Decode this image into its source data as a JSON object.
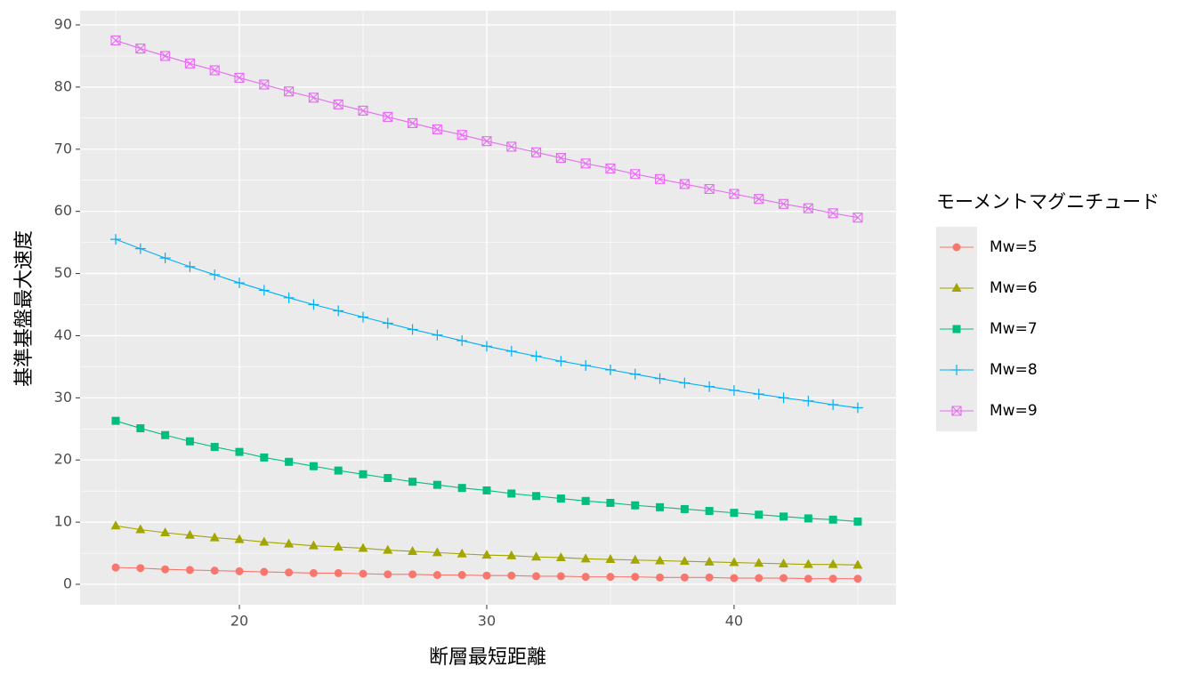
{
  "chart_data": {
    "type": "line",
    "x_label": "断層最短距離",
    "y_label": "基準基盤最大速度",
    "legend_title": "モーメントマグニチュード",
    "legend_position": "right",
    "grid": true,
    "x": [
      15,
      16,
      17,
      18,
      19,
      20,
      21,
      22,
      23,
      24,
      25,
      26,
      27,
      28,
      29,
      30,
      31,
      32,
      33,
      34,
      35,
      36,
      37,
      38,
      39,
      40,
      41,
      42,
      43,
      44,
      45
    ],
    "xlim": [
      13.56,
      46.55
    ],
    "xticks": [
      20,
      30,
      40
    ],
    "ylim": [
      -3.29,
      92.29
    ],
    "yticks": [
      0,
      10,
      20,
      30,
      40,
      50,
      60,
      70,
      80,
      90
    ],
    "series": [
      {
        "name": "Mw=5",
        "color": "#F8766D",
        "shape": "circle",
        "values": [
          2.7,
          2.6,
          2.4,
          2.3,
          2.2,
          2.1,
          2.0,
          1.9,
          1.8,
          1.8,
          1.7,
          1.6,
          1.6,
          1.5,
          1.5,
          1.4,
          1.4,
          1.3,
          1.3,
          1.2,
          1.2,
          1.2,
          1.1,
          1.1,
          1.1,
          1.0,
          1.0,
          1.0,
          0.9,
          0.9,
          0.9
        ]
      },
      {
        "name": "Mw=6",
        "color": "#A3A500",
        "shape": "triangle",
        "values": [
          9.4,
          8.8,
          8.3,
          7.9,
          7.5,
          7.2,
          6.8,
          6.5,
          6.2,
          6.0,
          5.8,
          5.5,
          5.3,
          5.1,
          4.9,
          4.7,
          4.6,
          4.4,
          4.3,
          4.1,
          4.0,
          3.9,
          3.8,
          3.7,
          3.6,
          3.5,
          3.4,
          3.3,
          3.2,
          3.2,
          3.1
        ]
      },
      {
        "name": "Mw=7",
        "color": "#00BF7D",
        "shape": "square",
        "values": [
          26.3,
          25.1,
          24.0,
          23.0,
          22.1,
          21.3,
          20.4,
          19.7,
          19.0,
          18.3,
          17.7,
          17.1,
          16.5,
          16.0,
          15.5,
          15.1,
          14.6,
          14.2,
          13.8,
          13.4,
          13.1,
          12.7,
          12.4,
          12.1,
          11.8,
          11.5,
          11.2,
          10.9,
          10.6,
          10.4,
          10.1
        ]
      },
      {
        "name": "Mw=8",
        "color": "#00B0F6",
        "shape": "plus",
        "values": [
          55.5,
          54.0,
          52.5,
          51.1,
          49.8,
          48.5,
          47.3,
          46.1,
          45.0,
          44.0,
          43.0,
          42.0,
          41.0,
          40.1,
          39.2,
          38.3,
          37.5,
          36.7,
          35.9,
          35.2,
          34.5,
          33.8,
          33.1,
          32.4,
          31.8,
          31.2,
          30.6,
          30.0,
          29.5,
          28.9,
          28.4
        ]
      },
      {
        "name": "Mw=9",
        "color": "#E76BF3",
        "shape": "square-cross",
        "values": [
          87.5,
          86.2,
          85.0,
          83.8,
          82.7,
          81.5,
          80.4,
          79.3,
          78.3,
          77.2,
          76.2,
          75.2,
          74.2,
          73.2,
          72.3,
          71.3,
          70.4,
          69.5,
          68.6,
          67.7,
          66.9,
          66.0,
          65.2,
          64.4,
          63.6,
          62.8,
          62.0,
          61.2,
          60.5,
          59.7,
          59.0
        ]
      }
    ]
  }
}
